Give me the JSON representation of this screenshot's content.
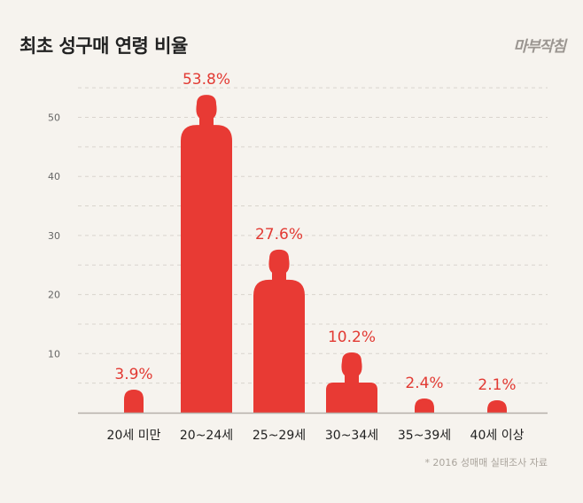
{
  "header": {
    "title": "최초 성구매 연령 비율",
    "logo_text": "마부작침"
  },
  "source_note": "* 2016 성매매 실태조사 자료",
  "colors": {
    "accent": "#e83a34",
    "label": "#e23a33",
    "grid": "#d9d4cd",
    "axis": "#b5b0a9",
    "tick_text": "#666666",
    "category_text": "#222222"
  },
  "chart_data": {
    "type": "bar",
    "title": "최초 성구매 연령 비율",
    "xlabel": "",
    "ylabel": "",
    "categories": [
      "20세 미만",
      "20~24세",
      "25~29세",
      "30~34세",
      "35~39세",
      "40세 이상"
    ],
    "values": [
      3.9,
      53.8,
      27.6,
      10.2,
      2.4,
      2.1
    ],
    "value_labels": [
      "3.9%",
      "53.8%",
      "27.6%",
      "10.2%",
      "2.4%",
      "2.1%"
    ],
    "yticks": [
      10,
      20,
      30,
      40,
      50
    ],
    "ylim": [
      0,
      55
    ],
    "grid": true,
    "mark_shape": "person-silhouette"
  }
}
